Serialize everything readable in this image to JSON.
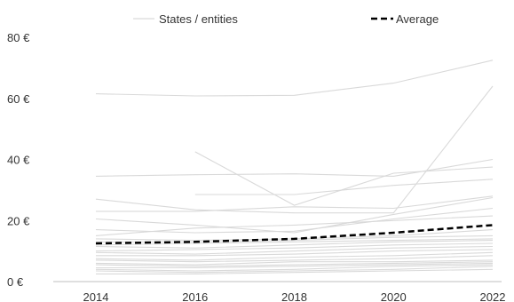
{
  "chart_data": {
    "type": "line",
    "x": [
      2014,
      2016,
      2018,
      2020,
      2022
    ],
    "ylim": [
      0,
      80
    ],
    "yticks": [
      0,
      20,
      40,
      60,
      80
    ],
    "y_tick_labels": [
      "0 €",
      "20 €",
      "40 €",
      "60 €",
      "80 €"
    ],
    "x_tick_labels": [
      "2014",
      "2016",
      "2018",
      "2020",
      "2022"
    ],
    "grid": false,
    "legend": {
      "position": "top",
      "entries": [
        {
          "label": "States / entities",
          "style": "thin-solid",
          "color": "#d9d9d9"
        },
        {
          "label": "Average",
          "style": "thick-dashed",
          "color": "#000000"
        }
      ]
    },
    "series_style": {
      "entity_color": "#d9d9d9",
      "average_color": "#000000"
    },
    "series": [
      {
        "values": [
          61.5,
          60.8,
          61.0,
          65.0,
          72.5
        ]
      },
      {
        "values": [
          34.5,
          35.0,
          35.3,
          34.5,
          40.0
        ]
      },
      {
        "values": [
          null,
          42.5,
          25.0,
          35.5,
          37.5
        ]
      },
      {
        "values": [
          null,
          28.5,
          28.5,
          31.5,
          33.5
        ]
      },
      {
        "values": [
          27.0,
          23.5,
          22.5,
          22.5,
          64.0
        ]
      },
      {
        "values": [
          23.0,
          23.0,
          24.5,
          24.0,
          28.0
        ]
      },
      {
        "values": [
          20.5,
          18.5,
          16.0,
          22.0,
          27.5
        ]
      },
      {
        "values": [
          17.0,
          16.0,
          16.5,
          20.5,
          24.0
        ]
      },
      {
        "values": [
          15.0,
          17.5,
          18.5,
          20.0,
          21.5
        ]
      },
      {
        "values": [
          14.0,
          13.5,
          14.0,
          15.0,
          17.0
        ]
      },
      {
        "values": [
          13.0,
          13.0,
          13.5,
          14.5,
          15.0
        ]
      },
      {
        "values": [
          12.0,
          12.5,
          13.0,
          13.5,
          14.0
        ]
      },
      {
        "values": [
          11.5,
          11.0,
          12.0,
          13.0,
          13.5
        ]
      },
      {
        "values": [
          10.0,
          10.5,
          11.0,
          12.0,
          12.5
        ]
      },
      {
        "values": [
          9.5,
          9.0,
          10.0,
          11.0,
          11.5
        ]
      },
      {
        "values": [
          8.5,
          8.5,
          9.0,
          10.0,
          10.5
        ]
      },
      {
        "values": [
          7.5,
          7.0,
          8.0,
          8.5,
          9.5
        ]
      },
      {
        "values": [
          7.0,
          6.5,
          7.0,
          7.5,
          8.5
        ]
      },
      {
        "values": [
          6.0,
          5.5,
          6.5,
          6.5,
          7.0
        ]
      },
      {
        "values": [
          5.5,
          5.0,
          5.5,
          6.0,
          6.5
        ]
      },
      {
        "values": [
          4.5,
          4.5,
          5.0,
          5.5,
          6.0
        ]
      },
      {
        "values": [
          4.0,
          3.5,
          4.0,
          5.0,
          5.5
        ]
      },
      {
        "values": [
          3.5,
          3.0,
          3.5,
          4.0,
          5.0
        ]
      },
      {
        "values": [
          2.5,
          2.5,
          3.0,
          3.5,
          4.0
        ]
      },
      {
        "name": "Average",
        "role": "average",
        "values": [
          12.5,
          13.0,
          14.0,
          16.0,
          18.5
        ]
      }
    ]
  }
}
